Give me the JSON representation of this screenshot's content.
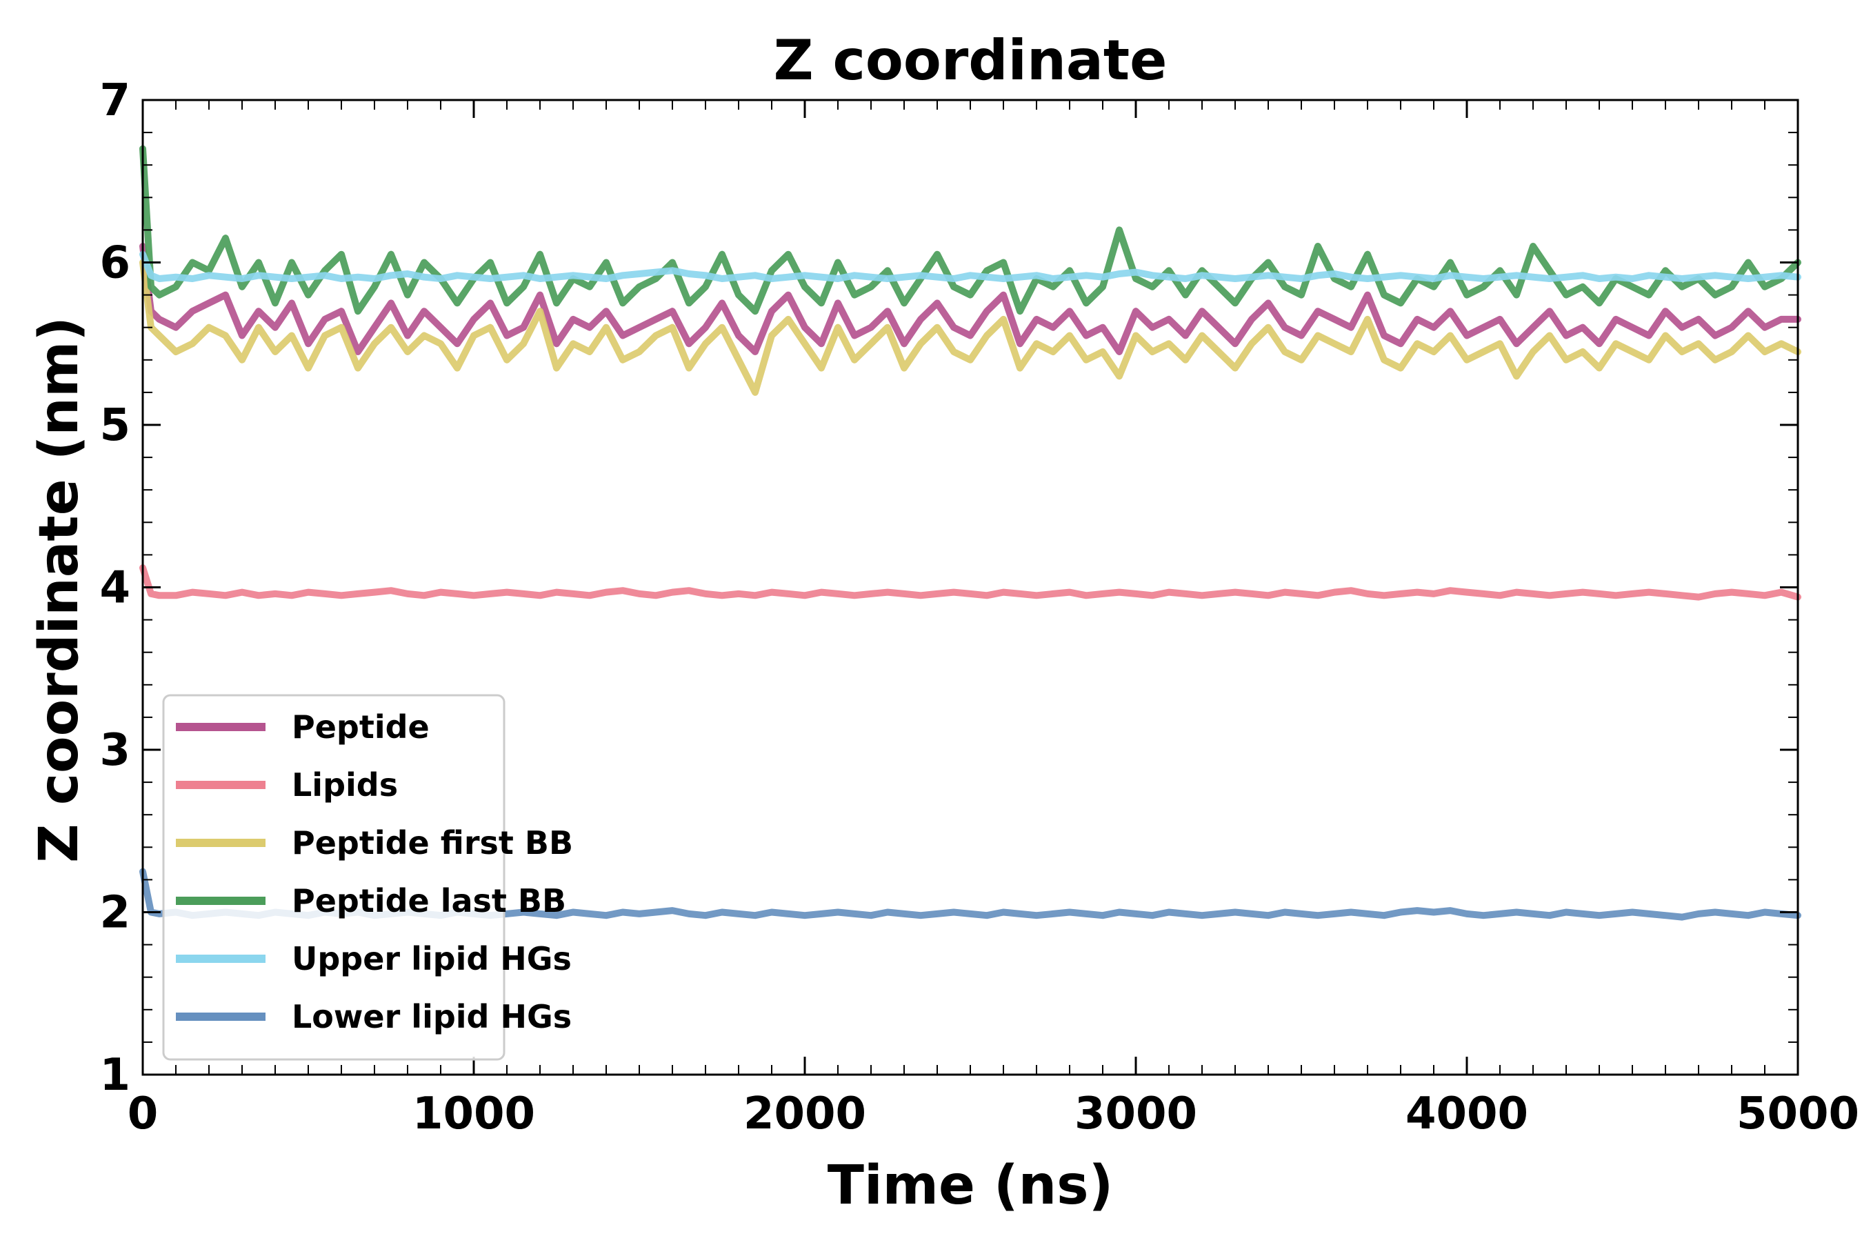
{
  "chart_data": {
    "type": "line",
    "title": "Z coordinate",
    "xlabel": "Time (ns)",
    "ylabel": "Z coordinate (nm)",
    "xlim": [
      0,
      5000
    ],
    "ylim": [
      1,
      7
    ],
    "xticks": [
      "0",
      "1000",
      "2000",
      "3000",
      "4000",
      "5000"
    ],
    "yticks": [
      "1",
      "2",
      "3",
      "4",
      "5",
      "6",
      "7"
    ],
    "grid": false,
    "legend_position": "lower-left",
    "x": [
      0,
      25,
      50,
      100,
      150,
      200,
      250,
      300,
      350,
      400,
      450,
      500,
      550,
      600,
      650,
      700,
      750,
      800,
      850,
      900,
      950,
      1000,
      1050,
      1100,
      1150,
      1200,
      1250,
      1300,
      1350,
      1400,
      1450,
      1500,
      1550,
      1600,
      1650,
      1700,
      1750,
      1800,
      1850,
      1900,
      1950,
      2000,
      2050,
      2100,
      2150,
      2200,
      2250,
      2300,
      2350,
      2400,
      2450,
      2500,
      2550,
      2600,
      2650,
      2700,
      2750,
      2800,
      2850,
      2900,
      2950,
      3000,
      3050,
      3100,
      3150,
      3200,
      3250,
      3300,
      3350,
      3400,
      3450,
      3500,
      3550,
      3600,
      3650,
      3700,
      3750,
      3800,
      3850,
      3900,
      3950,
      4000,
      4050,
      4100,
      4150,
      4200,
      4250,
      4300,
      4350,
      4400,
      4450,
      4500,
      4550,
      4600,
      4650,
      4700,
      4750,
      4800,
      4850,
      4900,
      4950,
      5000
    ],
    "series": [
      {
        "name": "Peptide",
        "color": "#b5548f",
        "values": [
          6.1,
          5.7,
          5.65,
          5.6,
          5.7,
          5.75,
          5.8,
          5.55,
          5.7,
          5.6,
          5.75,
          5.5,
          5.65,
          5.7,
          5.45,
          5.6,
          5.75,
          5.55,
          5.7,
          5.6,
          5.5,
          5.65,
          5.75,
          5.55,
          5.6,
          5.8,
          5.5,
          5.65,
          5.6,
          5.7,
          5.55,
          5.6,
          5.65,
          5.7,
          5.5,
          5.6,
          5.75,
          5.55,
          5.45,
          5.7,
          5.8,
          5.6,
          5.5,
          5.75,
          5.55,
          5.6,
          5.7,
          5.5,
          5.65,
          5.75,
          5.6,
          5.55,
          5.7,
          5.8,
          5.5,
          5.65,
          5.6,
          5.7,
          5.55,
          5.6,
          5.45,
          5.7,
          5.6,
          5.65,
          5.55,
          5.7,
          5.6,
          5.5,
          5.65,
          5.75,
          5.6,
          5.55,
          5.7,
          5.65,
          5.6,
          5.8,
          5.55,
          5.5,
          5.65,
          5.6,
          5.7,
          5.55,
          5.6,
          5.65,
          5.5,
          5.6,
          5.7,
          5.55,
          5.6,
          5.5,
          5.65,
          5.6,
          5.55,
          5.7,
          5.6,
          5.65,
          5.55,
          5.6,
          5.7,
          5.6,
          5.65,
          5.65
        ]
      },
      {
        "name": "Lipids",
        "color": "#ee8090",
        "values": [
          4.12,
          3.96,
          3.95,
          3.95,
          3.97,
          3.96,
          3.95,
          3.97,
          3.95,
          3.96,
          3.95,
          3.97,
          3.96,
          3.95,
          3.96,
          3.97,
          3.98,
          3.96,
          3.95,
          3.97,
          3.96,
          3.95,
          3.96,
          3.97,
          3.96,
          3.95,
          3.97,
          3.96,
          3.95,
          3.97,
          3.98,
          3.96,
          3.95,
          3.97,
          3.98,
          3.96,
          3.95,
          3.96,
          3.95,
          3.97,
          3.96,
          3.95,
          3.97,
          3.96,
          3.95,
          3.96,
          3.97,
          3.96,
          3.95,
          3.96,
          3.97,
          3.96,
          3.95,
          3.97,
          3.96,
          3.95,
          3.96,
          3.97,
          3.95,
          3.96,
          3.97,
          3.96,
          3.95,
          3.97,
          3.96,
          3.95,
          3.96,
          3.97,
          3.96,
          3.95,
          3.97,
          3.96,
          3.95,
          3.97,
          3.98,
          3.96,
          3.95,
          3.96,
          3.97,
          3.96,
          3.98,
          3.97,
          3.96,
          3.95,
          3.97,
          3.96,
          3.95,
          3.96,
          3.97,
          3.96,
          3.95,
          3.96,
          3.97,
          3.96,
          3.95,
          3.94,
          3.96,
          3.97,
          3.96,
          3.95,
          3.97,
          3.94
        ]
      },
      {
        "name": "Peptide first BB",
        "color": "#dccb6e",
        "values": [
          6.0,
          5.6,
          5.55,
          5.45,
          5.5,
          5.6,
          5.55,
          5.4,
          5.6,
          5.45,
          5.55,
          5.35,
          5.55,
          5.6,
          5.35,
          5.5,
          5.6,
          5.45,
          5.55,
          5.5,
          5.35,
          5.55,
          5.6,
          5.4,
          5.5,
          5.7,
          5.35,
          5.5,
          5.45,
          5.6,
          5.4,
          5.45,
          5.55,
          5.6,
          5.35,
          5.5,
          5.6,
          5.4,
          5.2,
          5.55,
          5.65,
          5.5,
          5.35,
          5.6,
          5.4,
          5.5,
          5.6,
          5.35,
          5.5,
          5.6,
          5.45,
          5.4,
          5.55,
          5.65,
          5.35,
          5.5,
          5.45,
          5.55,
          5.4,
          5.45,
          5.3,
          5.55,
          5.45,
          5.5,
          5.4,
          5.55,
          5.45,
          5.35,
          5.5,
          5.6,
          5.45,
          5.4,
          5.55,
          5.5,
          5.45,
          5.65,
          5.4,
          5.35,
          5.5,
          5.45,
          5.55,
          5.4,
          5.45,
          5.5,
          5.3,
          5.45,
          5.55,
          5.4,
          5.45,
          5.35,
          5.5,
          5.45,
          5.4,
          5.55,
          5.45,
          5.5,
          5.4,
          5.45,
          5.55,
          5.45,
          5.5,
          5.45
        ]
      },
      {
        "name": "Peptide last BB",
        "color": "#4b9d5a",
        "values": [
          6.7,
          5.85,
          5.8,
          5.85,
          6.0,
          5.95,
          6.15,
          5.85,
          6.0,
          5.75,
          6.0,
          5.8,
          5.95,
          6.05,
          5.7,
          5.85,
          6.05,
          5.8,
          6.0,
          5.9,
          5.75,
          5.9,
          6.0,
          5.75,
          5.85,
          6.05,
          5.75,
          5.9,
          5.85,
          6.0,
          5.75,
          5.85,
          5.9,
          6.0,
          5.75,
          5.85,
          6.05,
          5.8,
          5.7,
          5.95,
          6.05,
          5.85,
          5.75,
          6.0,
          5.8,
          5.85,
          5.95,
          5.75,
          5.9,
          6.05,
          5.85,
          5.8,
          5.95,
          6.0,
          5.7,
          5.9,
          5.85,
          5.95,
          5.75,
          5.85,
          6.2,
          5.9,
          5.85,
          5.95,
          5.8,
          5.95,
          5.85,
          5.75,
          5.9,
          6.0,
          5.85,
          5.8,
          6.1,
          5.9,
          5.85,
          6.05,
          5.8,
          5.75,
          5.9,
          5.85,
          6.0,
          5.8,
          5.85,
          5.95,
          5.8,
          6.1,
          5.95,
          5.8,
          5.85,
          5.75,
          5.9,
          5.85,
          5.8,
          5.95,
          5.85,
          5.9,
          5.8,
          5.85,
          6.0,
          5.85,
          5.9,
          6.0
        ]
      },
      {
        "name": "Upper lipid HGs",
        "color": "#8bd6ee",
        "values": [
          6.05,
          5.92,
          5.9,
          5.91,
          5.9,
          5.92,
          5.91,
          5.9,
          5.92,
          5.91,
          5.9,
          5.91,
          5.92,
          5.9,
          5.91,
          5.9,
          5.92,
          5.93,
          5.91,
          5.9,
          5.92,
          5.91,
          5.9,
          5.91,
          5.92,
          5.9,
          5.91,
          5.92,
          5.91,
          5.9,
          5.92,
          5.93,
          5.94,
          5.95,
          5.93,
          5.92,
          5.9,
          5.91,
          5.92,
          5.9,
          5.91,
          5.92,
          5.91,
          5.9,
          5.92,
          5.91,
          5.9,
          5.91,
          5.92,
          5.91,
          5.9,
          5.92,
          5.91,
          5.9,
          5.91,
          5.92,
          5.9,
          5.91,
          5.92,
          5.91,
          5.93,
          5.94,
          5.92,
          5.91,
          5.9,
          5.92,
          5.91,
          5.9,
          5.91,
          5.92,
          5.91,
          5.9,
          5.92,
          5.93,
          5.91,
          5.9,
          5.91,
          5.92,
          5.91,
          5.9,
          5.92,
          5.91,
          5.9,
          5.91,
          5.92,
          5.91,
          5.9,
          5.91,
          5.92,
          5.9,
          5.91,
          5.9,
          5.92,
          5.91,
          5.9,
          5.91,
          5.92,
          5.91,
          5.9,
          5.91,
          5.92,
          5.91
        ]
      },
      {
        "name": "Lower lipid HGs",
        "color": "#6690bf",
        "values": [
          2.25,
          2.0,
          1.99,
          2.0,
          1.98,
          1.99,
          2.0,
          1.99,
          1.98,
          2.0,
          1.99,
          1.98,
          2.0,
          1.99,
          2.0,
          1.98,
          1.99,
          2.0,
          1.99,
          1.98,
          2.0,
          1.99,
          1.98,
          1.99,
          2.0,
          1.99,
          1.98,
          2.0,
          1.99,
          1.98,
          2.0,
          1.99,
          2.0,
          2.01,
          1.99,
          1.98,
          2.0,
          1.99,
          1.98,
          2.0,
          1.99,
          1.98,
          1.99,
          2.0,
          1.99,
          1.98,
          2.0,
          1.99,
          1.98,
          1.99,
          2.0,
          1.99,
          1.98,
          2.0,
          1.99,
          1.98,
          1.99,
          2.0,
          1.99,
          1.98,
          2.0,
          1.99,
          1.98,
          2.0,
          1.99,
          1.98,
          1.99,
          2.0,
          1.99,
          1.98,
          2.0,
          1.99,
          1.98,
          1.99,
          2.0,
          1.99,
          1.98,
          2.0,
          2.01,
          2.0,
          2.01,
          1.99,
          1.98,
          1.99,
          2.0,
          1.99,
          1.98,
          2.0,
          1.99,
          1.98,
          1.99,
          2.0,
          1.99,
          1.98,
          1.97,
          1.99,
          2.0,
          1.99,
          1.98,
          2.0,
          1.99,
          1.98
        ]
      }
    ]
  }
}
